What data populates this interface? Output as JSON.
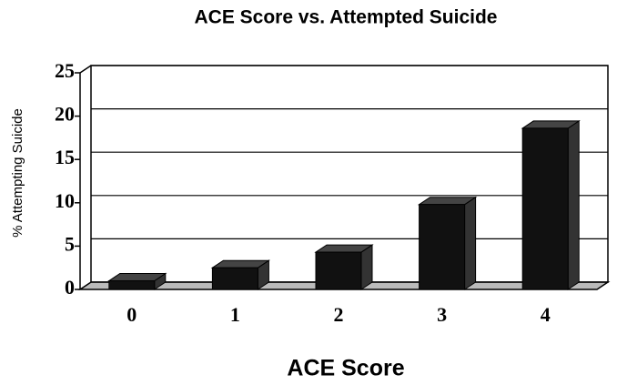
{
  "chart_data": {
    "type": "bar",
    "title": "ACE Score vs. Attempted Suicide",
    "x_label": "ACE Score",
    "y_label": "% Attempting Suicide",
    "categories": [
      "0",
      "1",
      "2",
      "3",
      "4"
    ],
    "values": [
      1,
      2.5,
      4.3,
      9.8,
      18.6
    ],
    "color": "#111111",
    "ylim": [
      0,
      25
    ],
    "yticks": [
      0,
      5,
      10,
      15,
      20,
      25
    ],
    "grid": true
  }
}
